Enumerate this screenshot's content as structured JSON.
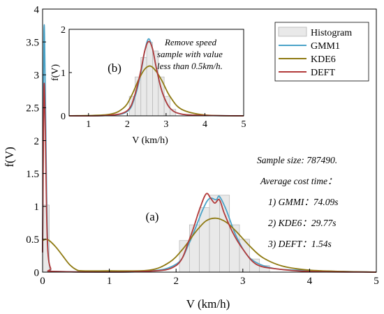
{
  "chart_data": [
    {
      "id": "main",
      "type": "histogram+line",
      "panel_label": "(a)",
      "xlabel": "V (km/h)",
      "ylabel": "f(V)",
      "xlim": [
        0,
        5
      ],
      "ylim": [
        0,
        4
      ],
      "xticks": [
        0,
        1,
        2,
        3,
        4,
        5
      ],
      "yticks": [
        0,
        0.5,
        1,
        1.5,
        2,
        2.5,
        3,
        3.5,
        4
      ],
      "tick_labels_x": [
        "0",
        "1",
        "2",
        "3",
        "4",
        "5"
      ],
      "tick_labels_y": [
        "0",
        "0.5",
        "1",
        "1.5",
        "2",
        "2.5",
        "3",
        "3.5",
        "4"
      ],
      "grid": false,
      "legend_position": "top-right",
      "legend": [
        "Histogram",
        "GMM1",
        "KDE6",
        "DEFT"
      ],
      "annotations": [
        "Sample size: 787490.",
        "Average cost time：",
        "1) GMMI：74.09s",
        "2) KDE6：29.77s",
        "3) DEFT：1.54s"
      ],
      "histogram": {
        "bin_edges": [
          0,
          0.1,
          2.05,
          2.2,
          2.35,
          2.5,
          2.65,
          2.8,
          2.95,
          3.1,
          3.25,
          3.4
        ],
        "heights": [
          1.02,
          0,
          0.48,
          0.72,
          0.98,
          1.17,
          1.17,
          0.72,
          0.5,
          0.2,
          0.1
        ]
      },
      "series": [
        {
          "name": "GMM1",
          "color": "#4aa3c8",
          "x": [
            0,
            0.02,
            0.04,
            0.06,
            0.08,
            0.12,
            0.2,
            1.5,
            2.0,
            2.2,
            2.4,
            2.5,
            2.6,
            2.65,
            2.75,
            2.9,
            3.1,
            3.4,
            3.8,
            4.5,
            5
          ],
          "y": [
            0.3,
            3.65,
            2.8,
            1.2,
            0.35,
            0.05,
            0.01,
            0.01,
            0.12,
            0.45,
            0.95,
            1.12,
            1.1,
            1.15,
            0.95,
            0.55,
            0.22,
            0.07,
            0.03,
            0.01,
            0
          ]
        },
        {
          "name": "KDE6",
          "color": "#8f7a12",
          "x": [
            0,
            0.05,
            0.1,
            0.2,
            0.3,
            0.4,
            0.5,
            0.6,
            1.0,
            1.6,
            1.9,
            2.1,
            2.3,
            2.45,
            2.6,
            2.75,
            2.9,
            3.1,
            3.3,
            3.6,
            4.0,
            4.5,
            5
          ],
          "y": [
            0.48,
            0.5,
            0.48,
            0.38,
            0.25,
            0.12,
            0.04,
            0.02,
            0.02,
            0.03,
            0.15,
            0.35,
            0.62,
            0.78,
            0.82,
            0.76,
            0.62,
            0.4,
            0.22,
            0.09,
            0.03,
            0.01,
            0
          ]
        },
        {
          "name": "DEFT",
          "color": "#b23a3a",
          "x": [
            0,
            0.02,
            0.04,
            0.06,
            0.08,
            0.12,
            0.2,
            1.5,
            2.0,
            2.2,
            2.35,
            2.45,
            2.52,
            2.58,
            2.65,
            2.72,
            2.85,
            3.0,
            3.2,
            3.5,
            4.0,
            5
          ],
          "y": [
            0.3,
            2.78,
            2.2,
            0.9,
            0.3,
            0.06,
            0.01,
            0.01,
            0.1,
            0.5,
            0.95,
            1.19,
            1.12,
            1.05,
            1.1,
            0.9,
            0.6,
            0.35,
            0.12,
            0.05,
            0.01,
            0
          ]
        }
      ]
    },
    {
      "id": "inset",
      "type": "histogram+line",
      "panel_label": "(b)",
      "xlabel": "V (km/h)",
      "ylabel": "f(V)",
      "xlim": [
        0.5,
        5
      ],
      "ylim": [
        0,
        2
      ],
      "xticks": [
        1,
        2,
        3,
        4,
        5
      ],
      "yticks": [
        0,
        1,
        2
      ],
      "tick_labels_x": [
        "1",
        "2",
        "3",
        "4",
        "5"
      ],
      "tick_labels_y": [
        "0",
        "1",
        "2"
      ],
      "grid": false,
      "annotation": [
        "Remove speed",
        "sample with value",
        "less than 0.5km/h."
      ],
      "histogram": {
        "bin_edges": [
          2.05,
          2.2,
          2.35,
          2.5,
          2.65,
          2.8,
          2.95,
          3.1,
          3.25
        ],
        "heights": [
          0.45,
          0.9,
          1.35,
          1.7,
          1.5,
          0.9,
          0.45,
          0.15
        ]
      },
      "series": [
        {
          "name": "GMM1",
          "color": "#4aa3c8",
          "x": [
            0.5,
            1.5,
            2.0,
            2.2,
            2.35,
            2.45,
            2.55,
            2.65,
            2.75,
            2.9,
            3.1,
            3.4,
            4.0,
            5
          ],
          "y": [
            0,
            0.01,
            0.1,
            0.45,
            1.0,
            1.5,
            1.78,
            1.55,
            1.1,
            0.55,
            0.18,
            0.04,
            0.01,
            0
          ]
        },
        {
          "name": "KDE6",
          "color": "#8f7a12",
          "x": [
            0.5,
            1.5,
            1.9,
            2.1,
            2.3,
            2.45,
            2.6,
            2.75,
            2.9,
            3.1,
            3.4,
            4.0,
            5
          ],
          "y": [
            0,
            0.03,
            0.18,
            0.45,
            0.85,
            1.08,
            1.15,
            1.02,
            0.8,
            0.45,
            0.15,
            0.02,
            0
          ]
        },
        {
          "name": "DEFT",
          "color": "#b23a3a",
          "x": [
            0.5,
            1.5,
            2.0,
            2.2,
            2.35,
            2.45,
            2.55,
            2.65,
            2.75,
            2.9,
            3.1,
            3.4,
            4.0,
            5
          ],
          "y": [
            0,
            0.01,
            0.12,
            0.5,
            1.05,
            1.5,
            1.72,
            1.55,
            1.1,
            0.55,
            0.18,
            0.04,
            0.01,
            0
          ]
        }
      ]
    }
  ],
  "colors": {
    "histogram_fill": "#e9e9e9",
    "histogram_edge": "#b4b4b4",
    "axis": "#000000"
  }
}
